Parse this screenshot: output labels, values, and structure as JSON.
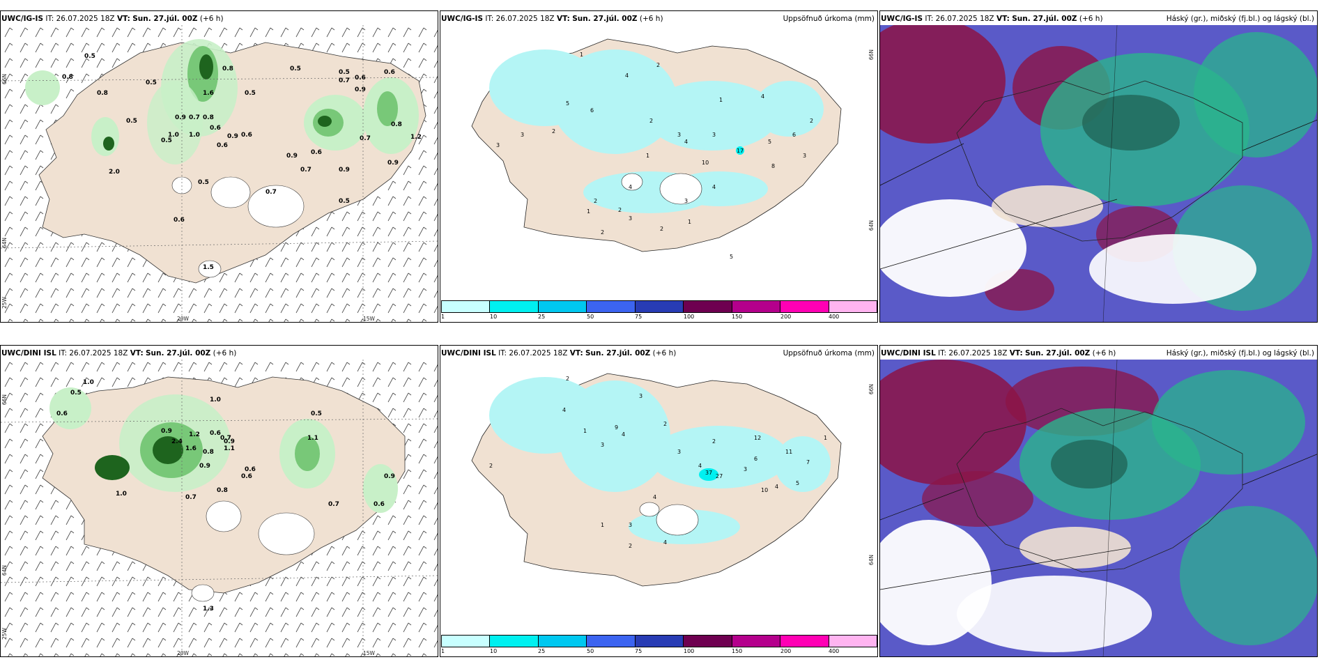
{
  "rows": [
    {
      "model": "UWC/IG-IS",
      "it_label": "IT:",
      "it_value": "26.07.2025 18Z",
      "vt_label": "VT:",
      "vt_value": "Sun. 27.júl. 00Z",
      "lead": "(+6 h)"
    },
    {
      "model": "UWC/DINI ISL",
      "it_label": "IT:",
      "it_value": "26.07.2025 18Z",
      "vt_label": "VT:",
      "vt_value": "Sun. 27.júl. 00Z",
      "lead": "(+6 h)"
    }
  ],
  "precip_title": "Uppsöfnuð úrkoma (mm)",
  "cloud_title": "Háský (gr.), miðský (fj.bl.) og lágský (bl.)",
  "axes": {
    "lat_66": "66N",
    "lat_64": "64N",
    "lon_25": "25W",
    "lon_20": "20W",
    "lon_15": "15W"
  },
  "colorbar": {
    "ticks": [
      "1",
      "10",
      "25",
      "50",
      "75",
      "100",
      "150",
      "200",
      "400"
    ],
    "colors": [
      "#c8ffff",
      "#00f0f0",
      "#00c8f0",
      "#3c64f0",
      "#283cb4",
      "#6e0050",
      "#b4008c",
      "#ff00b4",
      "#ffb4f0"
    ]
  },
  "colors": {
    "land": "#f0e1d2",
    "rain_light": "#c8f0c8",
    "rain_mid": "#78c878",
    "rain_dark": "#1e641e",
    "precip_cyan": "#b4f5f5",
    "cloud_high": "#2ab48c",
    "cloud_mid": "#5050c8",
    "cloud_low": "#8c1446"
  },
  "labels": {
    "p1": [
      "0.8",
      "0.5",
      "0.8",
      "0.5",
      "1.6",
      "0.8",
      "0.5",
      "0.5",
      "0.7",
      "0.6",
      "0.6",
      "0.9",
      "1.0",
      "0.8",
      "0.6",
      "0.5",
      "0.9",
      "0.7",
      "0.6",
      "0.9",
      "1.0",
      "0.5",
      "0.6",
      "0.9",
      "0.5",
      "0.7",
      "0.9",
      "0.6",
      "0.5",
      "2.0",
      "0.7",
      "0.6",
      "0.5",
      "1.5",
      "1.2",
      "0.9",
      "0.8",
      "0.7"
    ],
    "p2": [
      "1",
      "2",
      "3",
      "4",
      "5",
      "6",
      "3",
      "2",
      "1",
      "4",
      "3",
      "17",
      "5",
      "8",
      "6",
      "2",
      "3",
      "4",
      "1",
      "2",
      "2",
      "3",
      "2",
      "1",
      "5",
      "3",
      "4",
      "10",
      "3",
      "4",
      "2",
      "1",
      "2"
    ],
    "p4": [
      "1.0",
      "0.5",
      "0.6",
      "1.0",
      "0.9",
      "1.2",
      "2.4",
      "1.6",
      "0.9",
      "0.6",
      "0.8",
      "1.1",
      "0.6",
      "0.7",
      "0.9",
      "0.7",
      "0.8",
      "1.0",
      "1.3",
      "0.5",
      "0.6",
      "0.6",
      "0.7",
      "1.1",
      "0.9"
    ],
    "p5": [
      "2",
      "3",
      "4",
      "2",
      "1",
      "3",
      "4",
      "9",
      "2",
      "3",
      "4",
      "2",
      "12",
      "11",
      "7",
      "6",
      "5",
      "37",
      "27",
      "4",
      "3",
      "2",
      "1",
      "4",
      "10",
      "1",
      "4",
      "3"
    ]
  }
}
